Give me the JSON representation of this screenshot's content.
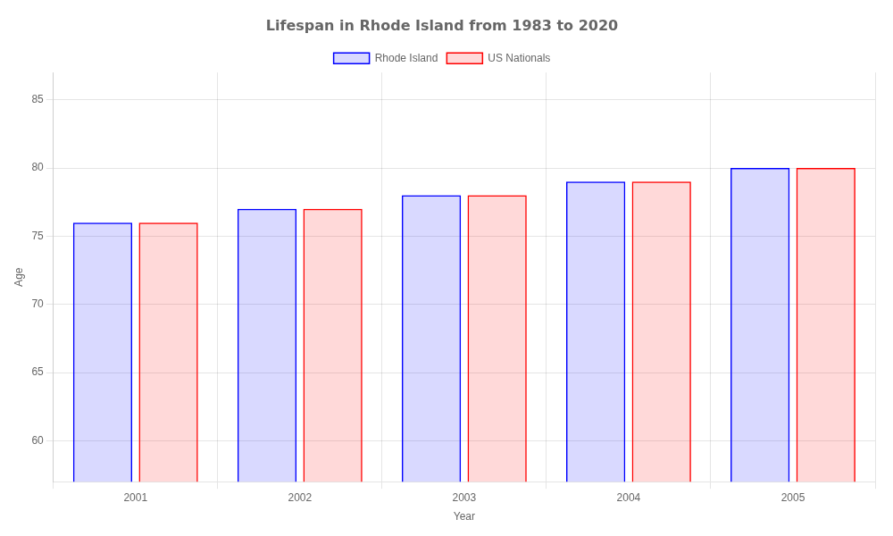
{
  "chart_data": {
    "type": "bar",
    "title": "Lifespan in Rhode Island from 1983 to 2020",
    "x_label": "Year",
    "y_label": "Age",
    "categories": [
      "2001",
      "2002",
      "2003",
      "2004",
      "2005"
    ],
    "series": [
      {
        "name": "Rhode Island",
        "color": "#0000ff",
        "values": [
          76.0,
          77.0,
          78.0,
          79.0,
          80.0
        ]
      },
      {
        "name": "US Nationals",
        "color": "#ff0000",
        "values": [
          76.0,
          77.0,
          78.0,
          79.0,
          80.0
        ]
      }
    ],
    "ylim": [
      57,
      87
    ],
    "yticks": [
      60,
      65,
      70,
      75,
      80,
      85
    ],
    "grid": true,
    "legend": "top"
  }
}
